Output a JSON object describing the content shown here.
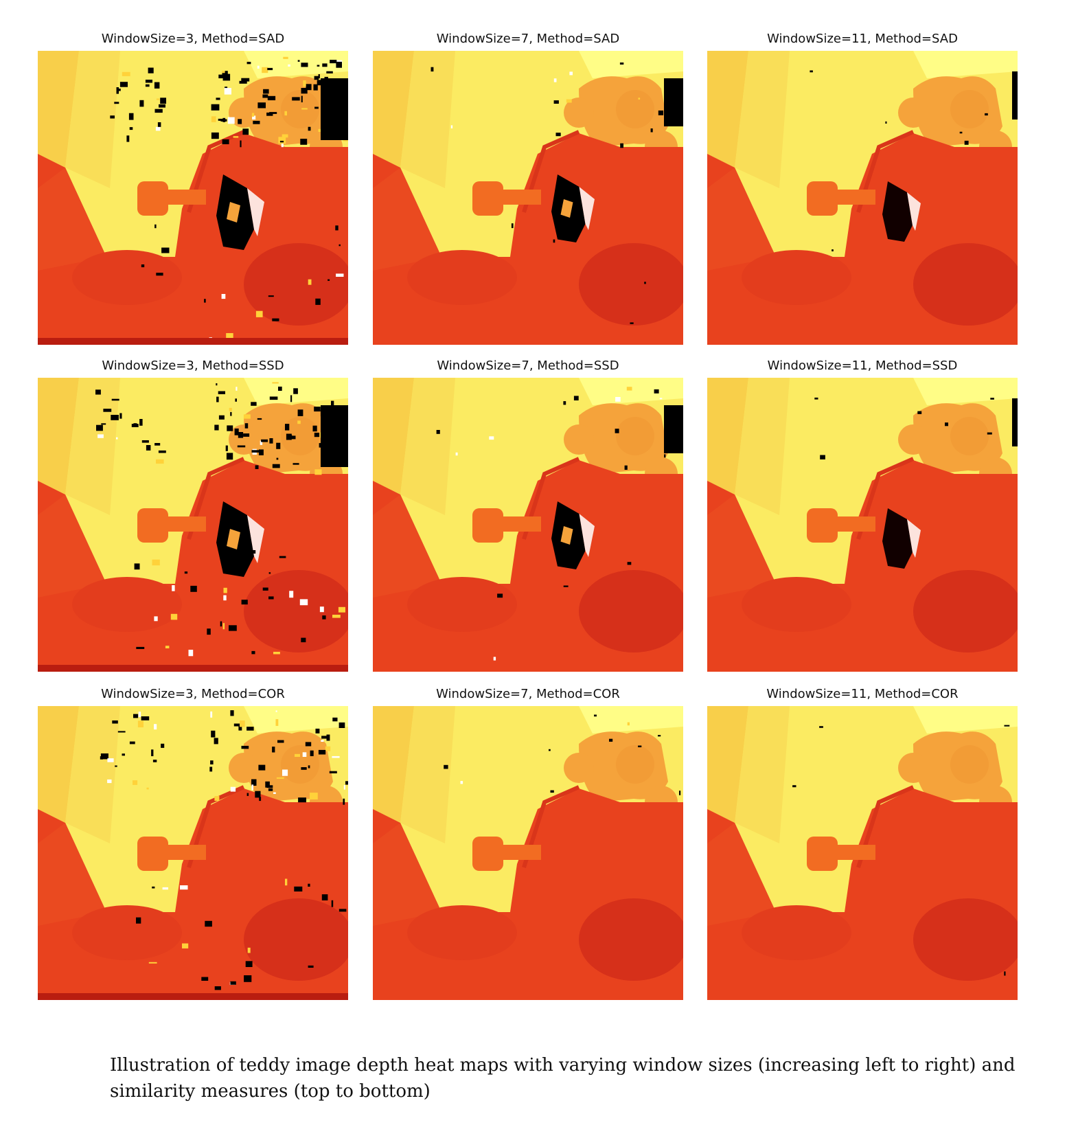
{
  "figure": {
    "panels": [
      {
        "title": "WindowSize=3, Method=SAD",
        "window_size": 3,
        "method": "SAD"
      },
      {
        "title": "WindowSize=7, Method=SAD",
        "window_size": 7,
        "method": "SAD"
      },
      {
        "title": "WindowSize=11, Method=SAD",
        "window_size": 11,
        "method": "SAD"
      },
      {
        "title": "WindowSize=3, Method=SSD",
        "window_size": 3,
        "method": "SSD"
      },
      {
        "title": "WindowSize=7, Method=SSD",
        "window_size": 7,
        "method": "SSD"
      },
      {
        "title": "WindowSize=11, Method=SSD",
        "window_size": 11,
        "method": "SSD"
      },
      {
        "title": "WindowSize=3, Method=COR",
        "window_size": 3,
        "method": "COR"
      },
      {
        "title": "WindowSize=7, Method=COR",
        "window_size": 7,
        "method": "COR"
      },
      {
        "title": "WindowSize=11, Method=COR",
        "window_size": 11,
        "method": "COR"
      }
    ],
    "colormap": [
      "#c8160c",
      "#e8421e",
      "#f26c22",
      "#f5a33b",
      "#f8cf4a",
      "#fbeb62",
      "#fffd86"
    ]
  },
  "caption": "Illustration of teddy image depth heat maps with varying window sizes (increasing left to right) and similarity measures (top to bottom)"
}
